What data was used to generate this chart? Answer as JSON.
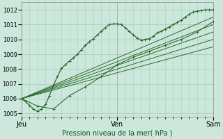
{
  "bg_color": "#cce8dc",
  "grid_color": "#aaccbb",
  "line_color": "#2d6a2d",
  "xlim": [
    0,
    48
  ],
  "ylim": [
    1004.8,
    1012.5
  ],
  "yticks": [
    1005,
    1006,
    1007,
    1008,
    1009,
    1010,
    1011,
    1012
  ],
  "day_ticks": [
    0,
    24,
    48
  ],
  "day_labels": [
    "Jeu",
    "Ven",
    "Sam"
  ],
  "xlabel": "Pression niveau de la mer( hPa )",
  "main_line": [
    0,
    1006.0,
    1,
    1005.8,
    2,
    1005.55,
    3,
    1005.3,
    4,
    1005.15,
    5,
    1005.3,
    6,
    1005.6,
    7,
    1006.2,
    8,
    1006.9,
    9,
    1007.5,
    10,
    1008.05,
    11,
    1008.3,
    12,
    1008.55,
    13,
    1008.75,
    14,
    1009.0,
    15,
    1009.3,
    16,
    1009.6,
    17,
    1009.85,
    18,
    1010.05,
    19,
    1010.3,
    20,
    1010.55,
    21,
    1010.8,
    22,
    1011.0,
    23,
    1011.05,
    24,
    1011.05,
    25,
    1011.0,
    26,
    1010.8,
    27,
    1010.55,
    28,
    1010.3,
    29,
    1010.1,
    30,
    1009.95,
    31,
    1010.0,
    32,
    1010.05,
    33,
    1010.2,
    34,
    1010.45,
    35,
    1010.55,
    36,
    1010.7,
    37,
    1010.85,
    38,
    1011.0,
    39,
    1011.15,
    40,
    1011.3,
    41,
    1011.5,
    42,
    1011.7,
    43,
    1011.85,
    44,
    1011.9,
    45,
    1011.95,
    46,
    1012.0,
    47,
    1012.0,
    48,
    1012.0
  ],
  "ensemble_lines": [
    {
      "x": [
        0,
        4,
        8,
        12,
        16,
        20,
        24,
        28,
        32,
        36,
        40,
        44,
        48
      ],
      "y": [
        1006.0,
        1005.5,
        1005.3,
        1006.2,
        1006.8,
        1007.5,
        1008.3,
        1008.8,
        1009.2,
        1009.6,
        1010.0,
        1010.5,
        1011.2
      ],
      "marker": true,
      "lw": 0.8
    },
    {
      "x": [
        0,
        48
      ],
      "y": [
        1006.0,
        1011.5
      ],
      "marker": false,
      "lw": 0.7
    },
    {
      "x": [
        0,
        48
      ],
      "y": [
        1006.0,
        1011.0
      ],
      "marker": false,
      "lw": 0.7
    },
    {
      "x": [
        0,
        48
      ],
      "y": [
        1006.0,
        1010.5
      ],
      "marker": false,
      "lw": 0.7
    },
    {
      "x": [
        0,
        48
      ],
      "y": [
        1006.0,
        1010.0
      ],
      "marker": false,
      "lw": 0.7
    },
    {
      "x": [
        0,
        48
      ],
      "y": [
        1006.0,
        1009.5
      ],
      "marker": false,
      "lw": 0.7
    }
  ]
}
